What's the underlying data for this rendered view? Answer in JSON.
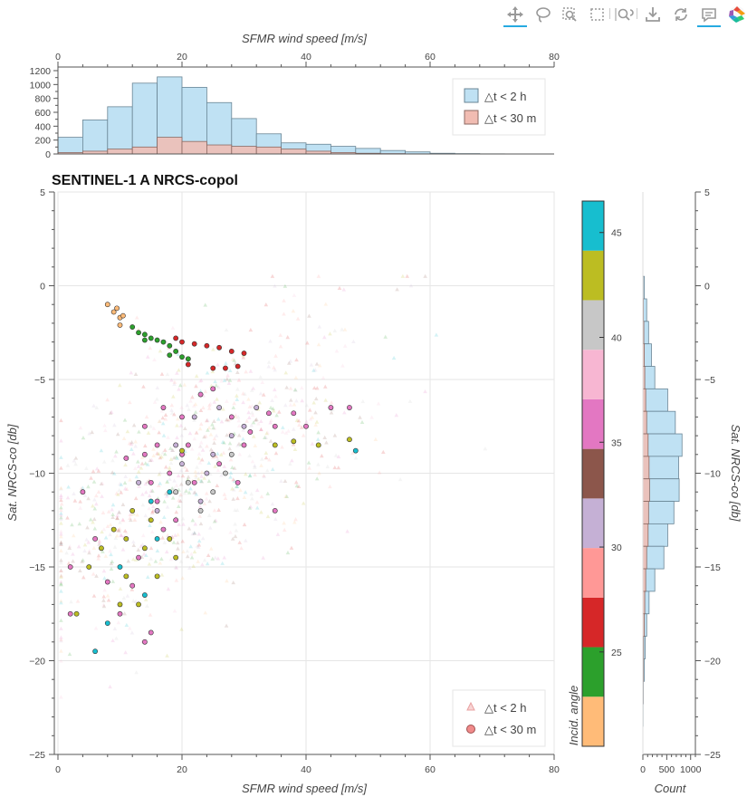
{
  "toolbar": {
    "tools": [
      {
        "name": "pan-tool",
        "icon": "move-icon",
        "active": true
      },
      {
        "name": "lasso-select-tool",
        "icon": "lasso-icon",
        "active": false
      },
      {
        "name": "box-zoom-tool",
        "icon": "box-zoom-icon",
        "active": false
      },
      {
        "name": "box-select-tool",
        "icon": "box-select-icon",
        "active": false
      },
      {
        "name": "wheel-zoom-tool",
        "icon": "wheel-zoom-icon",
        "active": false
      },
      {
        "name": "save-tool",
        "icon": "save-icon",
        "active": false
      },
      {
        "name": "reset-tool",
        "icon": "reset-icon",
        "active": false
      },
      {
        "name": "hover-tool",
        "icon": "hover-icon",
        "active": true
      },
      {
        "name": "bokeh-logo",
        "icon": "bokeh-logo-icon",
        "active": false
      }
    ]
  },
  "chart_data": [
    {
      "type": "bar",
      "role": "top-histogram",
      "xlabel": "SFMR wind speed [m/s]",
      "ylabel": "",
      "xlim": [
        0,
        80
      ],
      "ylim": [
        0,
        1200
      ],
      "x_ticks": [
        0,
        20,
        40,
        60,
        80
      ],
      "y_ticks": [
        0,
        200,
        400,
        600,
        800,
        1000,
        1200
      ],
      "bin_edges": [
        0,
        4,
        8,
        12,
        16,
        20,
        24,
        28,
        32,
        36,
        40,
        44,
        48,
        52,
        56,
        60,
        64,
        68,
        72,
        76
      ],
      "series": [
        {
          "name": "△t < 2 h",
          "color": "#bfe1f3",
          "values": [
            240,
            490,
            680,
            1020,
            1110,
            960,
            740,
            510,
            290,
            160,
            140,
            110,
            80,
            50,
            30,
            10,
            5,
            2,
            0
          ]
        },
        {
          "name": "△t < 30 m",
          "color": "#f1bcb2",
          "values": [
            20,
            40,
            70,
            100,
            240,
            180,
            130,
            110,
            100,
            70,
            40,
            20,
            10,
            5,
            2,
            1,
            0,
            0,
            0
          ]
        }
      ],
      "legend_position": "top-right"
    },
    {
      "type": "scatter",
      "role": "main-scatter",
      "title": "SENTINEL-1 A NRCS-copol",
      "xlabel": "SFMR wind speed [m/s]",
      "ylabel": "Sat. NRCS-co [db]",
      "xlim": [
        0,
        80
      ],
      "ylim": [
        -25,
        5
      ],
      "x_ticks": [
        0,
        20,
        40,
        60,
        80
      ],
      "y_ticks": [
        5,
        0,
        -5,
        -10,
        -15,
        -20,
        -25
      ],
      "grid": true,
      "legend_position": "bottom-right",
      "legend": [
        {
          "label": "△t < 2 h",
          "marker": "triangle",
          "color": "#f4b8b8"
        },
        {
          "label": "△t < 30 m",
          "marker": "circle",
          "color": "#f08a8a"
        }
      ],
      "color_by": "Incid. angle",
      "highlighted_points": [
        {
          "x": 8,
          "y": -1.0,
          "angle": 21.5
        },
        {
          "x": 9,
          "y": -1.4,
          "angle": 21.5
        },
        {
          "x": 10,
          "y": -1.7,
          "angle": 21.5
        },
        {
          "x": 9.5,
          "y": -1.2,
          "angle": 21.5
        },
        {
          "x": 10,
          "y": -2.1,
          "angle": 22
        },
        {
          "x": 10.5,
          "y": -1.6,
          "angle": 22
        },
        {
          "x": 12,
          "y": -2.2,
          "angle": 24
        },
        {
          "x": 13,
          "y": -2.5,
          "angle": 24
        },
        {
          "x": 14,
          "y": -2.6,
          "angle": 24
        },
        {
          "x": 15,
          "y": -2.8,
          "angle": 24
        },
        {
          "x": 16,
          "y": -2.9,
          "angle": 24
        },
        {
          "x": 17,
          "y": -3.0,
          "angle": 24
        },
        {
          "x": 18,
          "y": -3.2,
          "angle": 24
        },
        {
          "x": 19,
          "y": -3.5,
          "angle": 24
        },
        {
          "x": 20,
          "y": -3.8,
          "angle": 24
        },
        {
          "x": 21,
          "y": -3.9,
          "angle": 24
        },
        {
          "x": 18,
          "y": -3.7,
          "angle": 24
        },
        {
          "x": 14,
          "y": -2.9,
          "angle": 24
        },
        {
          "x": 19,
          "y": -2.8,
          "angle": 26
        },
        {
          "x": 20,
          "y": -3.0,
          "angle": 26
        },
        {
          "x": 22,
          "y": -3.1,
          "angle": 26
        },
        {
          "x": 24,
          "y": -3.2,
          "angle": 26
        },
        {
          "x": 26,
          "y": -3.3,
          "angle": 26
        },
        {
          "x": 28,
          "y": -3.5,
          "angle": 26
        },
        {
          "x": 30,
          "y": -3.6,
          "angle": 26
        },
        {
          "x": 25,
          "y": -4.4,
          "angle": 26
        },
        {
          "x": 27,
          "y": -4.4,
          "angle": 26
        },
        {
          "x": 29,
          "y": -4.3,
          "angle": 26
        },
        {
          "x": 21,
          "y": -4.2,
          "angle": 26
        },
        {
          "x": 13,
          "y": -10.5,
          "angle": 30
        },
        {
          "x": 16,
          "y": -12.0,
          "angle": 30
        },
        {
          "x": 20,
          "y": -9.5,
          "angle": 30
        },
        {
          "x": 24,
          "y": -10.0,
          "angle": 30
        },
        {
          "x": 22,
          "y": -7.0,
          "angle": 32
        },
        {
          "x": 26,
          "y": -6.5,
          "angle": 32
        },
        {
          "x": 28,
          "y": -8.0,
          "angle": 32
        },
        {
          "x": 30,
          "y": -7.5,
          "angle": 32
        },
        {
          "x": 25,
          "y": -9.0,
          "angle": 32
        },
        {
          "x": 19,
          "y": -8.5,
          "angle": 32
        },
        {
          "x": 32,
          "y": -6.5,
          "angle": 32
        },
        {
          "x": 23,
          "y": -11.5,
          "angle": 32
        },
        {
          "x": 14,
          "y": -7.5,
          "angle": 35
        },
        {
          "x": 17,
          "y": -6.5,
          "angle": 35
        },
        {
          "x": 20,
          "y": -7.0,
          "angle": 35
        },
        {
          "x": 23,
          "y": -5.8,
          "angle": 35
        },
        {
          "x": 25,
          "y": -5.5,
          "angle": 35
        },
        {
          "x": 28,
          "y": -7.0,
          "angle": 35
        },
        {
          "x": 31,
          "y": -7.8,
          "angle": 35
        },
        {
          "x": 34,
          "y": -6.8,
          "angle": 35
        },
        {
          "x": 38,
          "y": -6.8,
          "angle": 35
        },
        {
          "x": 16,
          "y": -8.5,
          "angle": 35
        },
        {
          "x": 20,
          "y": -9.0,
          "angle": 35
        },
        {
          "x": 29,
          "y": -10.5,
          "angle": 35
        },
        {
          "x": 35,
          "y": -12.0,
          "angle": 35
        },
        {
          "x": 11,
          "y": -9.2,
          "angle": 35
        },
        {
          "x": 14,
          "y": -9.0,
          "angle": 37
        },
        {
          "x": 15,
          "y": -10.5,
          "angle": 37
        },
        {
          "x": 16,
          "y": -11.5,
          "angle": 37
        },
        {
          "x": 17,
          "y": -13.0,
          "angle": 37
        },
        {
          "x": 18,
          "y": -10.0,
          "angle": 37
        },
        {
          "x": 19,
          "y": -12.5,
          "angle": 37
        },
        {
          "x": 21,
          "y": -8.5,
          "angle": 37
        },
        {
          "x": 22,
          "y": -10.5,
          "angle": 37
        },
        {
          "x": 26,
          "y": -9.5,
          "angle": 37
        },
        {
          "x": 30,
          "y": -8.5,
          "angle": 37
        },
        {
          "x": 35,
          "y": -7.5,
          "angle": 37
        },
        {
          "x": 40,
          "y": -7.5,
          "angle": 37
        },
        {
          "x": 44,
          "y": -6.5,
          "angle": 37
        },
        {
          "x": 47,
          "y": -6.5,
          "angle": 37
        },
        {
          "x": 13,
          "y": -14.5,
          "angle": 37
        },
        {
          "x": 12,
          "y": -16.0,
          "angle": 37
        },
        {
          "x": 10,
          "y": -17.5,
          "angle": 37
        },
        {
          "x": 8,
          "y": -15.8,
          "angle": 37
        },
        {
          "x": 6,
          "y": -13.5,
          "angle": 37
        },
        {
          "x": 4,
          "y": -11.0,
          "angle": 37
        },
        {
          "x": 2,
          "y": -15.0,
          "angle": 37
        },
        {
          "x": 2,
          "y": -17.5,
          "angle": 37
        },
        {
          "x": 15,
          "y": -18.5,
          "angle": 37
        },
        {
          "x": 14,
          "y": -19.0,
          "angle": 37
        },
        {
          "x": 27,
          "y": -10.0,
          "angle": 40
        },
        {
          "x": 25,
          "y": -11.0,
          "angle": 40
        },
        {
          "x": 23,
          "y": -12.0,
          "angle": 40
        },
        {
          "x": 21,
          "y": -10.5,
          "angle": 40
        },
        {
          "x": 19,
          "y": -11.0,
          "angle": 40
        },
        {
          "x": 28,
          "y": -9.0,
          "angle": 40
        },
        {
          "x": 7,
          "y": -14.0,
          "angle": 44
        },
        {
          "x": 9,
          "y": -13.0,
          "angle": 44
        },
        {
          "x": 11,
          "y": -13.5,
          "angle": 44
        },
        {
          "x": 12,
          "y": -12.0,
          "angle": 44
        },
        {
          "x": 14,
          "y": -14.0,
          "angle": 44
        },
        {
          "x": 15,
          "y": -12.5,
          "angle": 44
        },
        {
          "x": 16,
          "y": -15.5,
          "angle": 44
        },
        {
          "x": 18,
          "y": -13.5,
          "angle": 44
        },
        {
          "x": 19,
          "y": -14.5,
          "angle": 44
        },
        {
          "x": 11,
          "y": -15.5,
          "angle": 44
        },
        {
          "x": 10,
          "y": -17.0,
          "angle": 44
        },
        {
          "x": 5,
          "y": -15.0,
          "angle": 44
        },
        {
          "x": 3,
          "y": -17.5,
          "angle": 44
        },
        {
          "x": 13,
          "y": -17.0,
          "angle": 44
        },
        {
          "x": 35,
          "y": -8.5,
          "angle": 44
        },
        {
          "x": 38,
          "y": -8.3,
          "angle": 44
        },
        {
          "x": 42,
          "y": -8.5,
          "angle": 44
        },
        {
          "x": 47,
          "y": -8.2,
          "angle": 44
        },
        {
          "x": 20,
          "y": -8.8,
          "angle": 44
        },
        {
          "x": 15,
          "y": -11.5,
          "angle": 46
        },
        {
          "x": 16,
          "y": -13.5,
          "angle": 46
        },
        {
          "x": 10,
          "y": -15.0,
          "angle": 46
        },
        {
          "x": 8,
          "y": -18.0,
          "angle": 46
        },
        {
          "x": 6,
          "y": -19.5,
          "angle": 46
        },
        {
          "x": 14,
          "y": -16.5,
          "angle": 46
        },
        {
          "x": 18,
          "y": -11.0,
          "angle": 46
        },
        {
          "x": 48,
          "y": -8.8,
          "angle": 46
        }
      ]
    },
    {
      "type": "bar",
      "role": "side-histogram",
      "orientation": "horizontal",
      "xlabel": "Count",
      "ylabel": "Sat. NRCS-co [db]",
      "xlim": [
        0,
        1100
      ],
      "x_ticks": [
        0,
        500,
        1000
      ],
      "y_ticks": [
        5,
        0,
        -5,
        -10,
        -15,
        -20,
        -25
      ],
      "ylim": [
        -25,
        5
      ],
      "bin_edges": [
        0.5,
        -0.7,
        -1.9,
        -3.1,
        -4.3,
        -5.5,
        -6.7,
        -7.9,
        -9.1,
        -10.3,
        -11.5,
        -12.7,
        -13.9,
        -15.1,
        -16.3,
        -17.5,
        -18.7,
        -19.9,
        -21.1,
        -22.3,
        -23.5
      ],
      "series": [
        {
          "name": "△t < 2 h",
          "color": "#bfe1f3",
          "values": [
            30,
            80,
            120,
            180,
            250,
            520,
            680,
            820,
            750,
            760,
            650,
            520,
            440,
            250,
            130,
            80,
            50,
            30,
            10,
            5
          ]
        },
        {
          "name": "△t < 30 m",
          "color": "#f1bcb2",
          "values": [
            5,
            10,
            20,
            30,
            40,
            60,
            80,
            110,
            130,
            140,
            120,
            110,
            80,
            60,
            40,
            30,
            15,
            10,
            5,
            2
          ]
        }
      ]
    },
    {
      "type": "heatmap",
      "role": "colorbar",
      "label": "Incid. angle",
      "range": [
        20.5,
        46.5
      ],
      "ticks": [
        25,
        30,
        35,
        40,
        45
      ],
      "colors": [
        "#ffbb78",
        "#2ca02c",
        "#d62728",
        "#ff9896",
        "#c5b0d5",
        "#8c564b",
        "#e377c2",
        "#f7b6d2",
        "#c7c7c7",
        "#bcbd22",
        "#17becf"
      ]
    }
  ]
}
